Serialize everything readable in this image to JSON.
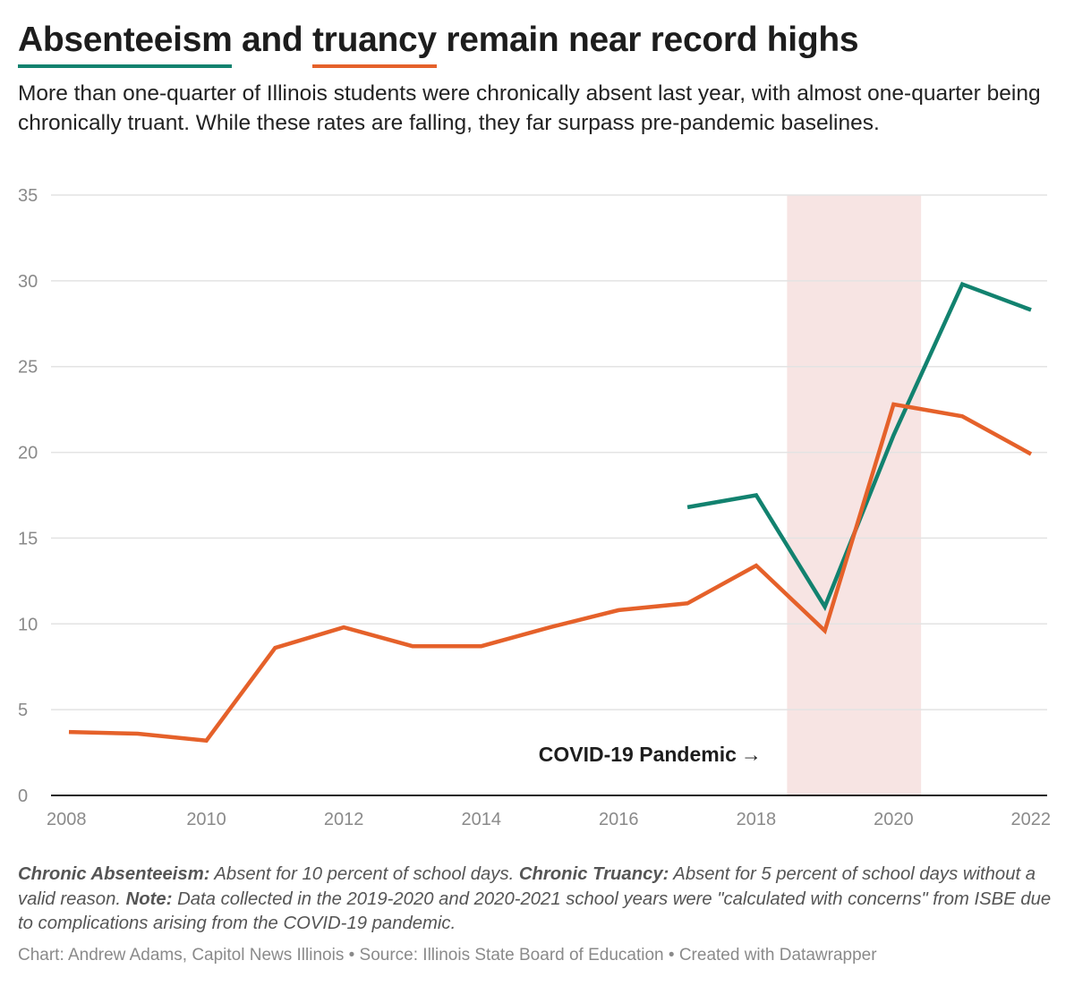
{
  "header": {
    "title_word1": "Absenteeism",
    "title_mid": "and",
    "title_word2": "truancy",
    "title_rest": "remain near record highs",
    "subtitle": "More than one-quarter of Illinois students were chronically absent last year, with almost one-quarter being chronically truant. While these rates are falling, they far surpass pre-pandemic baselines."
  },
  "chart_data": {
    "type": "line",
    "x": [
      2008,
      2009,
      2010,
      2011,
      2012,
      2013,
      2014,
      2015,
      2016,
      2017,
      2018,
      2019,
      2020,
      2021,
      2022
    ],
    "series": [
      {
        "key": "absenteeism",
        "color": "#12826f",
        "values": [
          null,
          null,
          null,
          null,
          null,
          null,
          null,
          null,
          null,
          16.8,
          17.5,
          11.0,
          21.0,
          29.8,
          28.3
        ]
      },
      {
        "key": "truancy",
        "color": "#e5612a",
        "values": [
          3.7,
          3.6,
          3.2,
          8.6,
          9.8,
          8.7,
          8.7,
          9.8,
          10.8,
          11.2,
          13.4,
          9.6,
          22.8,
          22.1,
          19.9
        ]
      }
    ],
    "ylim": [
      0,
      35
    ],
    "yticks": [
      0,
      5,
      10,
      15,
      20,
      25,
      30,
      35
    ],
    "xticks": [
      2008,
      2010,
      2012,
      2014,
      2016,
      2018,
      2020,
      2022
    ],
    "grid": true,
    "highlight_range": {
      "x_start": 2018.45,
      "x_end": 2020.4,
      "color": "#f7e4e3"
    },
    "annotation": {
      "text": "COVID-19 Pandemic",
      "arrow": "→",
      "x": 2018.3,
      "y": 2.4
    }
  },
  "footer": {
    "notes": {
      "term1": "Chronic Absenteeism:",
      "def1": " Absent for 10 percent of school days. ",
      "term2": "Chronic Truancy:",
      "def2": " Absent for 5 percent of school days without a valid reason. ",
      "term3": "Note:",
      "def3": " Data collected in the 2019-2020 and 2020-2021 school years were \"calculated with concerns\" from ISBE due to complications arising from the COVID-19 pandemic."
    },
    "credit": "Chart: Andrew Adams, Capitol News Illinois • Source: Illinois State Board of Education • Created with Datawrapper"
  }
}
